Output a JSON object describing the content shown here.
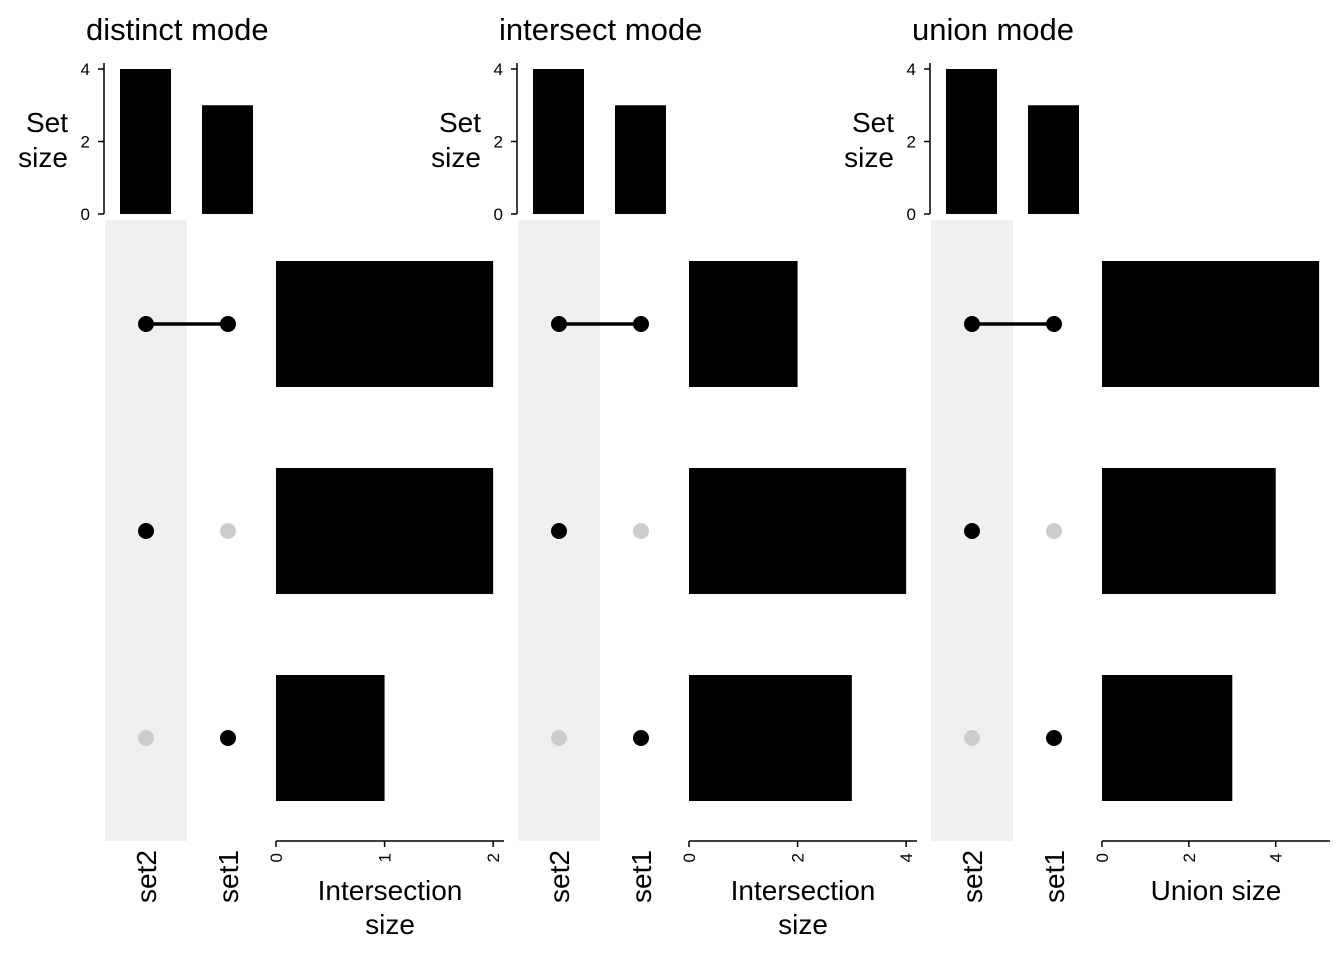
{
  "colors": {
    "bar": "#000000",
    "dot_active": "#000000",
    "dot_inactive": "#cccccc",
    "stripe": "#f0f0f0",
    "axis": "#000000",
    "background": "#ffffff"
  },
  "chart_data": [
    {
      "type": "bar",
      "title": "distinct mode",
      "sets": [
        "set2",
        "set1"
      ],
      "set_size": {
        "ylabel": [
          "Set",
          "size"
        ],
        "values": [
          4,
          3
        ],
        "ylim": [
          0,
          4
        ],
        "ticks": [
          0,
          2,
          4
        ]
      },
      "intersections": [
        {
          "members": [
            "set2",
            "set1"
          ],
          "value": 2
        },
        {
          "members": [
            "set2"
          ],
          "value": 2
        },
        {
          "members": [
            "set1"
          ],
          "value": 1
        }
      ],
      "xlabel": [
        "Intersection",
        "size"
      ],
      "xlim": [
        0,
        2.1
      ],
      "xticks": [
        0,
        1,
        2
      ]
    },
    {
      "type": "bar",
      "title": "intersect mode",
      "sets": [
        "set2",
        "set1"
      ],
      "set_size": {
        "ylabel": [
          "Set",
          "size"
        ],
        "values": [
          4,
          3
        ],
        "ylim": [
          0,
          4
        ],
        "ticks": [
          0,
          2,
          4
        ]
      },
      "intersections": [
        {
          "members": [
            "set2",
            "set1"
          ],
          "value": 2
        },
        {
          "members": [
            "set2"
          ],
          "value": 4
        },
        {
          "members": [
            "set1"
          ],
          "value": 3
        }
      ],
      "xlabel": [
        "Intersection",
        "size"
      ],
      "xlim": [
        0,
        4.2
      ],
      "xticks": [
        0,
        2,
        4
      ]
    },
    {
      "type": "bar",
      "title": "union mode",
      "sets": [
        "set2",
        "set1"
      ],
      "set_size": {
        "ylabel": [
          "Set",
          "size"
        ],
        "values": [
          4,
          3
        ],
        "ylim": [
          0,
          4
        ],
        "ticks": [
          0,
          2,
          4
        ]
      },
      "intersections": [
        {
          "members": [
            "set2",
            "set1"
          ],
          "value": 5
        },
        {
          "members": [
            "set2"
          ],
          "value": 4
        },
        {
          "members": [
            "set1"
          ],
          "value": 3
        }
      ],
      "xlabel": [
        "Union size"
      ],
      "xlim": [
        0,
        5.25
      ],
      "xticks": [
        0,
        2,
        4
      ]
    }
  ]
}
